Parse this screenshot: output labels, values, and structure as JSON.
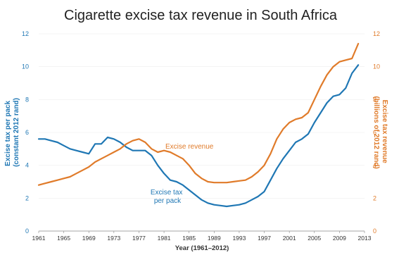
{
  "chart_data": {
    "type": "line",
    "title": "Cigarette excise tax revenue in South Africa",
    "xlabel": "Year (1961–2012)",
    "ylabel_left": [
      "Excise tax per pack",
      "(constant 2012 rand)"
    ],
    "ylabel_right": [
      "Excise tax revenue",
      "(billions of 2012 rand)"
    ],
    "x_ticks": [
      "1961",
      "1965",
      "1969",
      "1973",
      "1977",
      "1981",
      "1985",
      "1989",
      "1993",
      "1997",
      "2001",
      "2005",
      "2009",
      "2013"
    ],
    "y_left_ticks": [
      "0",
      "2",
      "4",
      "6",
      "8",
      "10",
      "12"
    ],
    "y_right_ticks": [
      "0",
      "2",
      "4",
      "6",
      "8",
      "10",
      "12"
    ],
    "xlim": [
      1961,
      2013
    ],
    "ylim_left": [
      0,
      12
    ],
    "ylim_right": [
      0,
      12
    ],
    "colors": {
      "per_pack": "#1f77b4",
      "revenue": "#e07b2a"
    },
    "annotations": {
      "revenue": "Excise revenue",
      "per_pack": [
        "Excise tax",
        "per pack"
      ]
    },
    "series": [
      {
        "name": "Excise tax per pack",
        "axis": "left",
        "color": "#1f77b4",
        "x": [
          1961,
          1962,
          1963,
          1964,
          1965,
          1966,
          1967,
          1968,
          1969,
          1970,
          1971,
          1972,
          1973,
          1974,
          1975,
          1976,
          1977,
          1978,
          1979,
          1980,
          1981,
          1982,
          1983,
          1984,
          1985,
          1986,
          1987,
          1988,
          1989,
          1990,
          1991,
          1992,
          1993,
          1994,
          1995,
          1996,
          1997,
          1998,
          1999,
          2000,
          2001,
          2002,
          2003,
          2004,
          2005,
          2006,
          2007,
          2008,
          2009,
          2010,
          2011,
          2012
        ],
        "y": [
          5.6,
          5.6,
          5.5,
          5.4,
          5.2,
          5.0,
          4.9,
          4.8,
          4.7,
          5.3,
          5.3,
          5.7,
          5.6,
          5.4,
          5.1,
          4.9,
          4.9,
          4.9,
          4.6,
          4.0,
          3.5,
          3.1,
          3.0,
          2.8,
          2.5,
          2.2,
          1.9,
          1.7,
          1.6,
          1.55,
          1.5,
          1.55,
          1.6,
          1.7,
          1.9,
          2.1,
          2.4,
          3.1,
          3.8,
          4.4,
          4.9,
          5.4,
          5.6,
          5.9,
          6.6,
          7.2,
          7.8,
          8.2,
          8.3,
          8.7,
          9.6,
          10.1
        ]
      },
      {
        "name": "Excise revenue",
        "axis": "right",
        "color": "#e07b2a",
        "x": [
          1961,
          1962,
          1963,
          1964,
          1965,
          1966,
          1967,
          1968,
          1969,
          1970,
          1971,
          1972,
          1973,
          1974,
          1975,
          1976,
          1977,
          1978,
          1979,
          1980,
          1981,
          1982,
          1983,
          1984,
          1985,
          1986,
          1987,
          1988,
          1989,
          1990,
          1991,
          1992,
          1993,
          1994,
          1995,
          1996,
          1997,
          1998,
          1999,
          2000,
          2001,
          2002,
          2003,
          2004,
          2005,
          2006,
          2007,
          2008,
          2009,
          2010,
          2011,
          2012
        ],
        "y": [
          2.8,
          2.9,
          3.0,
          3.1,
          3.2,
          3.3,
          3.5,
          3.7,
          3.9,
          4.2,
          4.4,
          4.6,
          4.8,
          5.0,
          5.3,
          5.5,
          5.6,
          5.4,
          5.0,
          4.8,
          4.9,
          4.8,
          4.6,
          4.4,
          4.0,
          3.5,
          3.2,
          3.0,
          2.95,
          2.95,
          2.95,
          3.0,
          3.05,
          3.1,
          3.3,
          3.6,
          4.0,
          4.7,
          5.6,
          6.2,
          6.6,
          6.8,
          6.9,
          7.2,
          8.0,
          8.8,
          9.5,
          10.0,
          10.3,
          10.4,
          10.5,
          11.4
        ]
      }
    ]
  }
}
